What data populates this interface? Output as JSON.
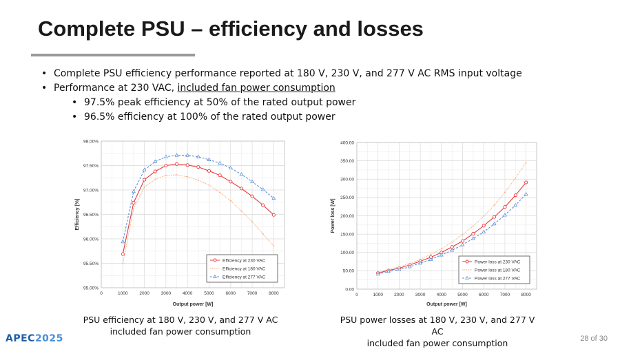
{
  "slide": {
    "title": "Complete PSU – efficiency and losses",
    "bullets": [
      "Complete PSU efficiency performance reported at 180 V, 230 V, and 277 V AC RMS input voltage",
      "Performance at 230 VAC, ",
      "included fan power consumption",
      "97.5% peak efficiency at 50% of the rated output power",
      "96.5% efficiency at 100% of the rated output power"
    ],
    "caption_left": [
      "PSU efficiency at 180 V, 230 V, and 277 V AC",
      "included fan power consumption"
    ],
    "caption_right": [
      "PSU power losses at 180 V, 230 V, and 277 V AC",
      "included fan power consumption"
    ],
    "logo": "APEC",
    "logo_year": "2025",
    "page_number": "28 of 30"
  },
  "colors": {
    "v230": "#e8383a",
    "v180": "#f4a97a",
    "v277": "#5b8fd6"
  },
  "chart_data": [
    {
      "type": "line",
      "xlabel": "Output power [W]",
      "ylabel": "Efficiency [%]",
      "xlim": [
        0,
        8500
      ],
      "ylim": [
        95.0,
        98.0
      ],
      "x_ticks": [
        "0",
        "1000",
        "2000",
        "3000",
        "4000",
        "5000",
        "6000",
        "7000",
        "8000"
      ],
      "y_ticks": [
        "95.00%",
        "95.50%",
        "96.00%",
        "96.50%",
        "97.00%",
        "97.50%",
        "98.00%"
      ],
      "legend_position": "bottom-right",
      "series": [
        {
          "name": "Efficiency at 230 VAC",
          "marker": "circle",
          "color": "#e8383a",
          "x": [
            1000,
            1500,
            2000,
            2500,
            3000,
            3500,
            4000,
            4500,
            5000,
            5500,
            6000,
            6500,
            7000,
            7500,
            8000
          ],
          "y": [
            95.69,
            96.74,
            97.21,
            97.38,
            97.5,
            97.53,
            97.51,
            97.47,
            97.39,
            97.3,
            97.17,
            97.03,
            96.87,
            96.69,
            96.49
          ]
        },
        {
          "name": "Efficiency at 180 VAC",
          "marker": "none",
          "color": "#f4a97a",
          "x": [
            1000,
            1500,
            2000,
            2500,
            3000,
            3500,
            4000,
            4500,
            5000,
            5500,
            6000,
            6500,
            7000,
            7500,
            8000
          ],
          "y": [
            95.5,
            96.62,
            97.06,
            97.22,
            97.3,
            97.31,
            97.27,
            97.2,
            97.1,
            96.95,
            96.78,
            96.57,
            96.35,
            96.1,
            95.85
          ]
        },
        {
          "name": "Efficiency at 277 VAC",
          "marker": "triangle",
          "color": "#5b8fd6",
          "x": [
            1000,
            1500,
            2000,
            2500,
            3000,
            3500,
            4000,
            4500,
            5000,
            5500,
            6000,
            6500,
            7000,
            7500,
            8000
          ],
          "y": [
            95.94,
            96.97,
            97.41,
            97.58,
            97.68,
            97.71,
            97.71,
            97.68,
            97.62,
            97.55,
            97.45,
            97.32,
            97.17,
            97.01,
            96.83
          ]
        }
      ]
    },
    {
      "type": "line",
      "xlabel": "Output power [W]",
      "ylabel": "Power loss [W]",
      "xlim": [
        0,
        8500
      ],
      "ylim": [
        0,
        400
      ],
      "x_ticks": [
        "0",
        "1000",
        "2000",
        "3000",
        "4000",
        "5000",
        "6000",
        "7000",
        "8000"
      ],
      "y_ticks": [
        "0.00",
        "50.00",
        "100.00",
        "150.00",
        "200.00",
        "250.00",
        "300.00",
        "350.00",
        "400.00"
      ],
      "legend_position": "bottom-right",
      "series": [
        {
          "name": "Power loss at 230 VAC",
          "marker": "circle",
          "color": "#e8383a",
          "x": [
            1000,
            1500,
            2000,
            2500,
            3000,
            3500,
            4000,
            4500,
            5000,
            5500,
            6000,
            6500,
            7000,
            7500,
            8000
          ],
          "y": [
            44,
            51,
            57,
            66,
            76,
            87,
            100,
            115,
            131,
            151,
            173,
            197,
            224,
            256,
            291
          ]
        },
        {
          "name": "Power loss at 180 VAC",
          "marker": "none",
          "color": "#f4a97a",
          "x": [
            1000,
            1500,
            2000,
            2500,
            3000,
            3500,
            4000,
            4500,
            5000,
            5500,
            6000,
            6500,
            7000,
            7500,
            8000
          ],
          "y": [
            47,
            54,
            61,
            70,
            81,
            95,
            110,
            128,
            149,
            172,
            199,
            229,
            264,
            303,
            346
          ]
        },
        {
          "name": "Power loss at 277 VAC",
          "marker": "triangle",
          "color": "#5b8fd6",
          "x": [
            1000,
            1500,
            2000,
            2500,
            3000,
            3500,
            4000,
            4500,
            5000,
            5500,
            6000,
            6500,
            7000,
            7500,
            8000
          ],
          "y": [
            41,
            48,
            53,
            61,
            71,
            81,
            93,
            106,
            121,
            138,
            156,
            178,
            202,
            229,
            259
          ]
        }
      ]
    }
  ]
}
